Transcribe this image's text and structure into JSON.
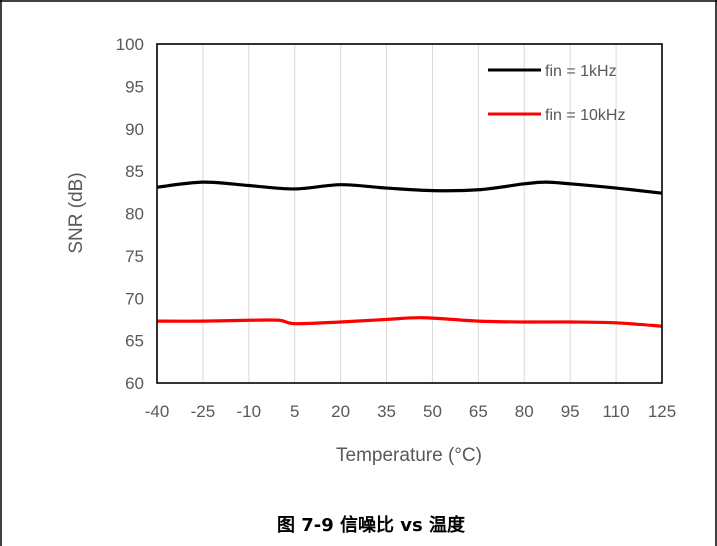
{
  "caption": "图 7-9 信噪比 vs 温度",
  "chart_data": {
    "type": "line",
    "title": "",
    "xlabel": "Temperature (°C)",
    "ylabel": "SNR (dB)",
    "x_ticks": [
      -40,
      -25,
      -10,
      5,
      20,
      35,
      50,
      65,
      80,
      95,
      110,
      125
    ],
    "ylim": [
      60,
      100
    ],
    "y_ticks": [
      60,
      65,
      70,
      75,
      80,
      85,
      90,
      95,
      100
    ],
    "xlim": [
      -40,
      125
    ],
    "grid": "vertical",
    "legend_position": "top-right",
    "series": [
      {
        "name": "fin = 1kHz",
        "color": "#000000",
        "x": [
          -40,
          -25,
          -10,
          5,
          20,
          35,
          50,
          65,
          80,
          87,
          95,
          110,
          125
        ],
        "y": [
          83.1,
          83.7,
          83.3,
          82.9,
          83.4,
          83.0,
          82.7,
          82.8,
          83.5,
          83.7,
          83.5,
          83.0,
          82.4
        ]
      },
      {
        "name": "fin = 10kHz",
        "color": "#ff0000",
        "x": [
          -40,
          -25,
          -10,
          0,
          5,
          20,
          35,
          47,
          65,
          80,
          95,
          110,
          125
        ],
        "y": [
          67.3,
          67.3,
          67.4,
          67.4,
          67.0,
          67.2,
          67.5,
          67.7,
          67.3,
          67.2,
          67.2,
          67.1,
          66.7
        ]
      }
    ]
  }
}
